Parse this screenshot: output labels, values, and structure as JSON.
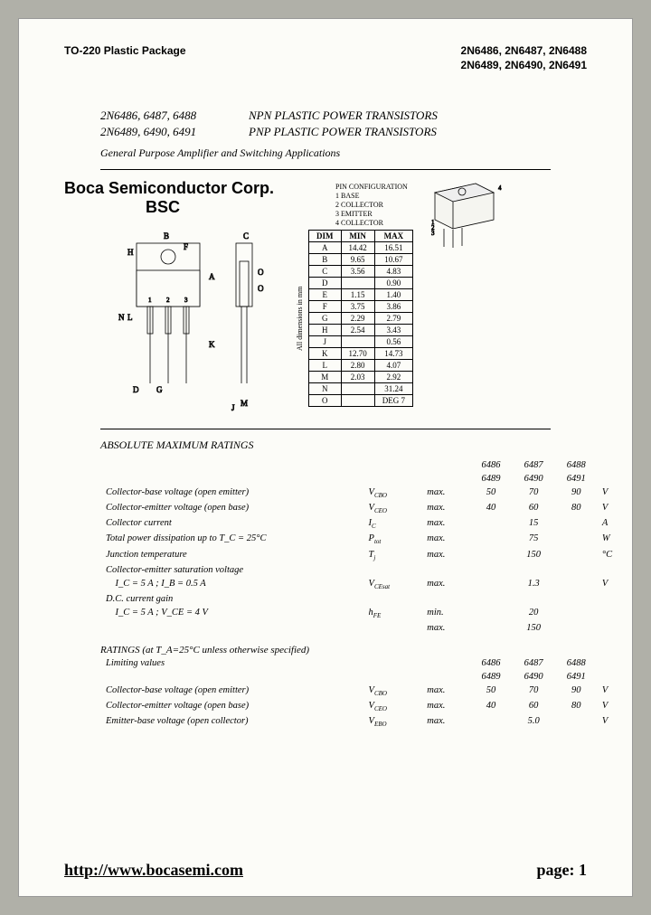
{
  "header": {
    "left": "TO-220 Plastic Package",
    "right1": "2N6486, 2N6487, 2N6488",
    "right2": "2N6489, 2N6490, 2N6491"
  },
  "titles": {
    "line1_parts": "2N6486, 6487, 6488",
    "line1_desc": "NPN PLASTIC POWER TRANSISTORS",
    "line2_parts": "2N6489, 6490, 6491",
    "line2_desc": "PNP PLASTIC POWER TRANSISTORS",
    "subtitle": "General Purpose Amplifier and Switching Applications"
  },
  "company": {
    "name": "Boca Semiconductor Corp.",
    "abbr": "BSC"
  },
  "pinconfig": {
    "head": "PIN CONFIGURATION",
    "p1": "1 BASE",
    "p2": "2 COLLECTOR",
    "p3": "3 EMITTER",
    "p4": "4 COLLECTOR"
  },
  "dim": {
    "head_dim": "DIM",
    "head_min": "MIN",
    "head_max": "MAX",
    "side": "All dimensions in mm",
    "rows": [
      {
        "d": "A",
        "min": "14.42",
        "max": "16.51"
      },
      {
        "d": "B",
        "min": "9.65",
        "max": "10.67"
      },
      {
        "d": "C",
        "min": "3.56",
        "max": "4.83"
      },
      {
        "d": "D",
        "min": "",
        "max": "0.90"
      },
      {
        "d": "E",
        "min": "1.15",
        "max": "1.40"
      },
      {
        "d": "F",
        "min": "3.75",
        "max": "3.86"
      },
      {
        "d": "G",
        "min": "2.29",
        "max": "2.79"
      },
      {
        "d": "H",
        "min": "2.54",
        "max": "3.43"
      },
      {
        "d": "J",
        "min": "",
        "max": "0.56"
      },
      {
        "d": "K",
        "min": "12.70",
        "max": "14.73"
      },
      {
        "d": "L",
        "min": "2.80",
        "max": "4.07"
      },
      {
        "d": "M",
        "min": "2.03",
        "max": "2.92"
      },
      {
        "d": "N",
        "min": "",
        "max": "31.24"
      },
      {
        "d": "O",
        "min": "",
        "max": "DEG 7"
      }
    ]
  },
  "ratings": {
    "title": "ABSOLUTE MAXIMUM RATINGS",
    "hdr1_a": "6486",
    "hdr1_b": "6487",
    "hdr1_c": "6488",
    "hdr2_a": "6489",
    "hdr2_b": "6490",
    "hdr2_c": "6491",
    "r1_desc": "Collector-base voltage (open emitter)",
    "r1_sym": "V",
    "r1_sub": "CBO",
    "r1_mm": "max.",
    "r1_a": "50",
    "r1_b": "70",
    "r1_c": "90",
    "r1_u": "V",
    "r2_desc": "Collector-emitter voltage (open base)",
    "r2_sym": "V",
    "r2_sub": "CEO",
    "r2_mm": "max.",
    "r2_a": "40",
    "r2_b": "60",
    "r2_c": "80",
    "r2_u": "V",
    "r3_desc": "Collector current",
    "r3_sym": "I",
    "r3_sub": "C",
    "r3_mm": "max.",
    "r3_b": "15",
    "r3_u": "A",
    "r4_desc": "Total power dissipation up to T_C = 25°C",
    "r4_sym": "P",
    "r4_sub": "tot",
    "r4_mm": "max.",
    "r4_b": "75",
    "r4_u": "W",
    "r5_desc": "Junction temperature",
    "r5_sym": "T",
    "r5_sub": "j",
    "r5_mm": "max.",
    "r5_b": "150",
    "r5_u": "°C",
    "r6_desc": "Collector-emitter saturation voltage",
    "r6b_desc": "    I_C = 5 A ; I_B = 0.5 A",
    "r6_sym": "V",
    "r6_sub": "CEsat",
    "r6_mm": "max.",
    "r6_b": "1.3",
    "r6_u": "V",
    "r7_desc": "D.C. current gain",
    "r7b_desc": "    I_C = 5 A ; V_CE = 4 V",
    "r7_sym": "h",
    "r7_sub": "FE",
    "r7_mm": "min.",
    "r7_b": "20",
    "r7c_mm": "max.",
    "r7c_b": "150"
  },
  "ratings2": {
    "title": "RATINGS (at T_A=25°C unless otherwise specified)",
    "limiting": "Limiting values",
    "r1_desc": "Collector-base voltage (open emitter)",
    "r1_sym": "V",
    "r1_sub": "CBO",
    "r1_mm": "max.",
    "r1_a": "50",
    "r1_b": "70",
    "r1_c": "90",
    "r1_u": "V",
    "r2_desc": "Collector-emitter voltage (open base)",
    "r2_sym": "V",
    "r2_sub": "CEO",
    "r2_mm": "max.",
    "r2_a": "40",
    "r2_b": "60",
    "r2_c": "80",
    "r2_u": "V",
    "r3_desc": "Emitter-base voltage (open collector)",
    "r3_sym": "V",
    "r3_sub": "EBO",
    "r3_mm": "max.",
    "r3_b": "5.0",
    "r3_u": "V"
  },
  "footer": {
    "url": "http://www.bocasemi.com",
    "page": "page: 1"
  }
}
